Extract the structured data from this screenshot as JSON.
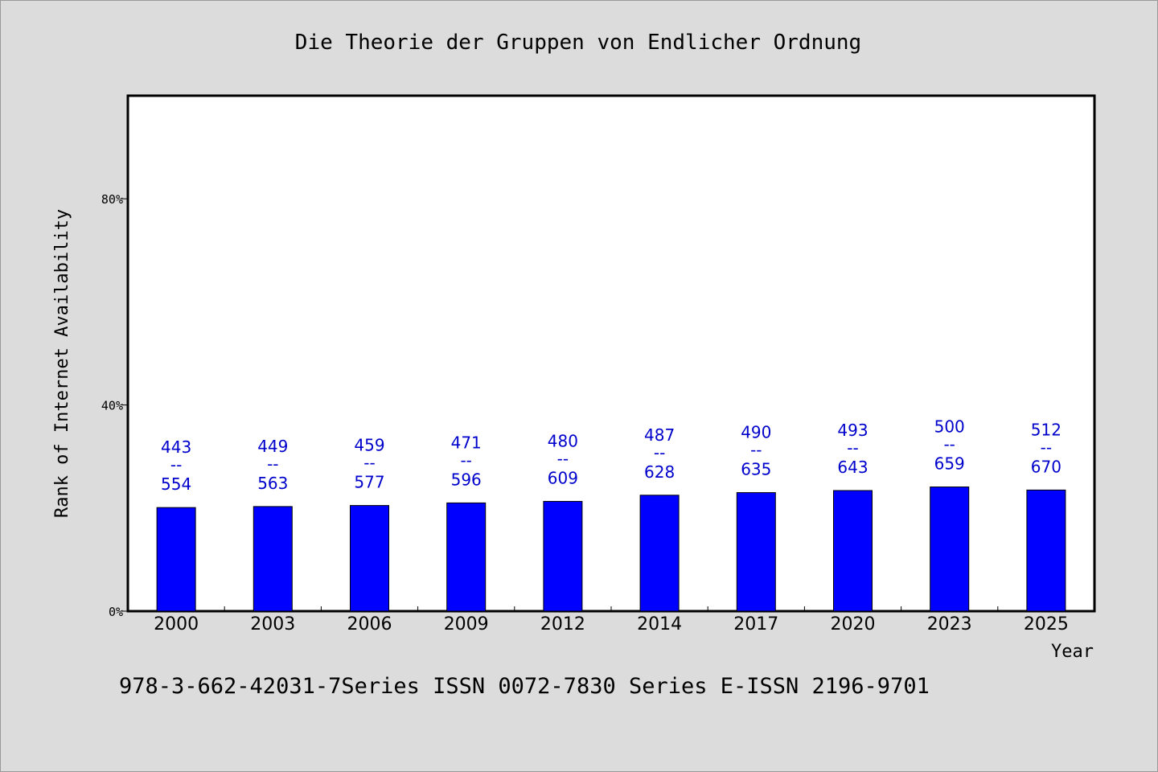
{
  "chart_data": {
    "type": "bar",
    "title": "Die Theorie der Gruppen von Endlicher Ordnung",
    "xlabel": "Year",
    "ylabel": "Rank of Internet Availability",
    "footer": "978-3-662-42031-7Series ISSN 0072-7830 Series E-ISSN 2196-9701",
    "categories": [
      "2000",
      "2003",
      "2006",
      "2009",
      "2012",
      "2014",
      "2017",
      "2020",
      "2023",
      "2025"
    ],
    "values": [
      20.1,
      20.3,
      20.5,
      21.0,
      21.3,
      22.5,
      23.0,
      23.4,
      24.1,
      23.5
    ],
    "labels_top": [
      "443",
      "449",
      "459",
      "471",
      "480",
      "487",
      "490",
      "493",
      "500",
      "512"
    ],
    "labels_sep": "--",
    "labels_bottom": [
      "554",
      "563",
      "577",
      "596",
      "609",
      "628",
      "635",
      "643",
      "659",
      "670"
    ],
    "yticks": [
      "0%",
      "40%",
      "80%"
    ],
    "ytick_values": [
      0,
      40,
      80
    ],
    "ylim": [
      0,
      100
    ],
    "grid": false,
    "colors": {
      "bar": "#0000ff",
      "label": "#0000cc",
      "background": "#dcdcdc",
      "plot_bg": "#ffffff"
    }
  }
}
